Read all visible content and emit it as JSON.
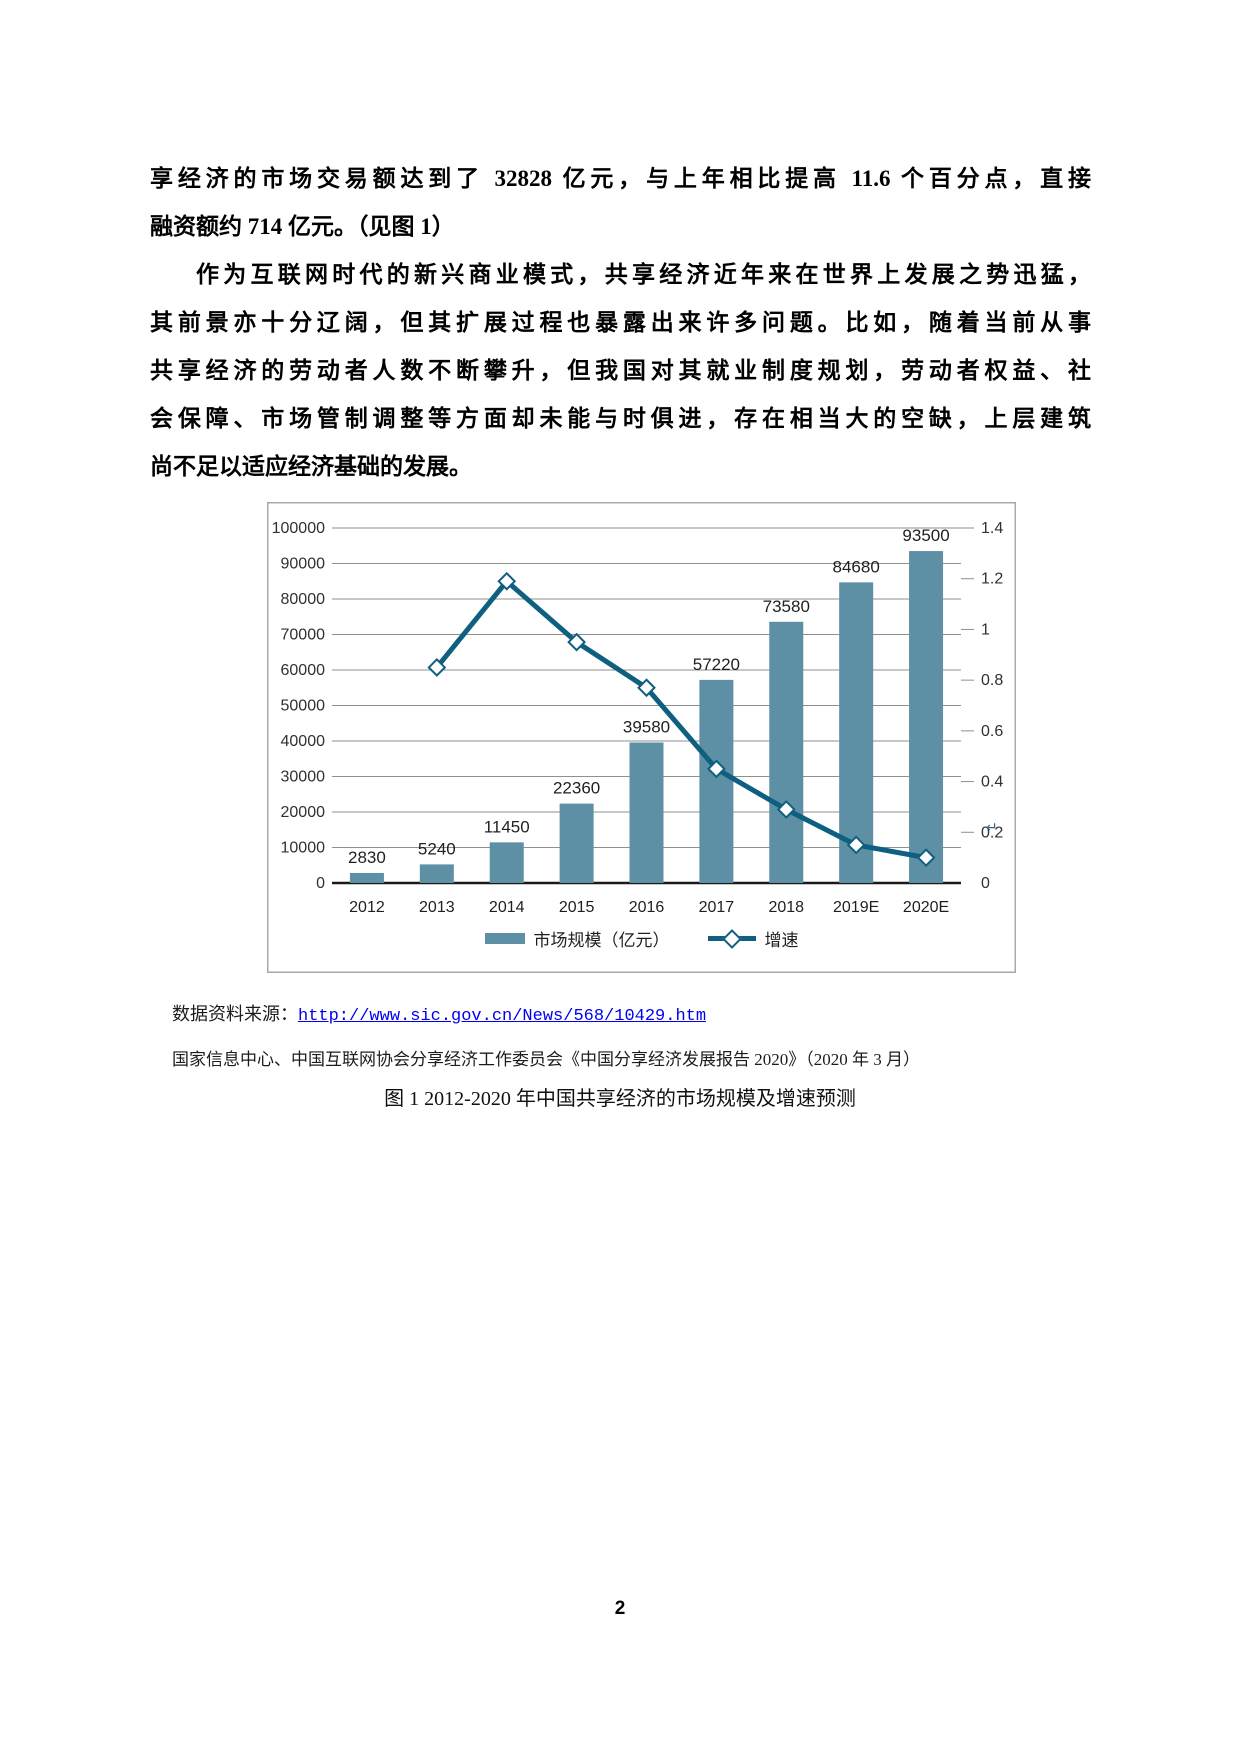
{
  "page": {
    "number": "2"
  },
  "body": {
    "p1_lines": [
      "享经济的市场交易额达到了 32828 亿元，与上年相比提高 11.6 个百分点，直接",
      "融资额约 714 亿元。（见图 1）"
    ],
    "p2_lines": [
      "作为互联网时代的新兴商业模式，共享经济近年来在世界上发展之势迅猛，",
      "其前景亦十分辽阔，但其扩展过程也暴露出来许多问题。比如，随着当前从事",
      "共享经济的劳动者人数不断攀升，但我国对其就业制度规划，劳动者权益、社",
      "会保障、市场管制调整等方面却未能与时俱进，存在相当大的空缺，上层建筑",
      "尚不足以适应经济基础的发展。"
    ]
  },
  "source": {
    "label": "数据资料来源：",
    "link": "http://www.sic.gov.cn/News/568/10429.htm",
    "attribution": "国家信息中心、中国互联网协会分享经济工作委员会《中国分享经济发展报告 2020》（2020 年 3 月）"
  },
  "figure": {
    "caption": "图 1 2012-2020 年中国共享经济的市场规模及增速预测",
    "return_mark": "↵"
  },
  "chart_data": {
    "type": "bar",
    "title": "",
    "categories": [
      "2012",
      "2013",
      "2014",
      "2015",
      "2016",
      "2017",
      "2018",
      "2019E",
      "2020E"
    ],
    "series": [
      {
        "name": "市场规模（亿元）",
        "kind": "bar",
        "axis": "left",
        "values": [
          2830,
          5240,
          11450,
          22360,
          39580,
          57220,
          73580,
          84680,
          93500
        ]
      },
      {
        "name": "增速",
        "kind": "line",
        "axis": "right",
        "values": [
          null,
          0.85,
          1.19,
          0.95,
          0.77,
          0.45,
          0.29,
          0.15,
          0.1
        ]
      }
    ],
    "left_axis": {
      "min": 0,
      "max": 100000,
      "step": 10000
    },
    "right_axis": {
      "min": 0,
      "max": 1.4,
      "step": 0.2
    },
    "legend_position": "bottom",
    "grid": true,
    "colors": {
      "bar": "#5D90A4",
      "line": "#0E5F80",
      "grid": "#8f8f8f",
      "axis_line": "#1a1a1a",
      "text": "#303030",
      "border": "#a9a9a9"
    }
  }
}
